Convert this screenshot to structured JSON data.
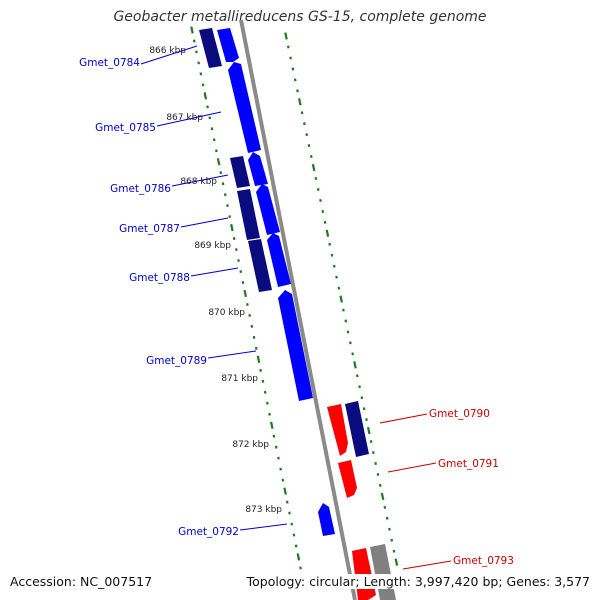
{
  "title": "Geobacter metallireducens GS-15, complete genome",
  "footer": {
    "accession": "Accession: NC_007517",
    "summary": "Topology: circular; Length: 3,997,420 bp; Genes: 3,577"
  },
  "colors": {
    "forward_gene": "#0000ff",
    "forward_gene_dark": "#000080",
    "reverse_gene": "#ff0000",
    "reverse_gene_dark": "#000080",
    "other_gene": "#808080",
    "backbone": "#8a8a8a",
    "tick": "#1f7a1f",
    "forward_label": "#0000cc",
    "reverse_label": "#cc0000"
  },
  "map": {
    "kbp_labels": [
      "866 kbp",
      "867 kbp",
      "868 kbp",
      "869 kbp",
      "870 kbp",
      "871 kbp",
      "872 kbp",
      "873 kbp"
    ],
    "forward_genes": [
      {
        "label": "Gmet_0784"
      },
      {
        "label": "Gmet_0785"
      },
      {
        "label": "Gmet_0786"
      },
      {
        "label": "Gmet_0787"
      },
      {
        "label": "Gmet_0788"
      },
      {
        "label": "Gmet_0789"
      },
      {
        "label": "Gmet_0792"
      }
    ],
    "reverse_genes": [
      {
        "label": "Gmet_0790"
      },
      {
        "label": "Gmet_0791"
      },
      {
        "label": "Gmet_0793"
      }
    ]
  }
}
